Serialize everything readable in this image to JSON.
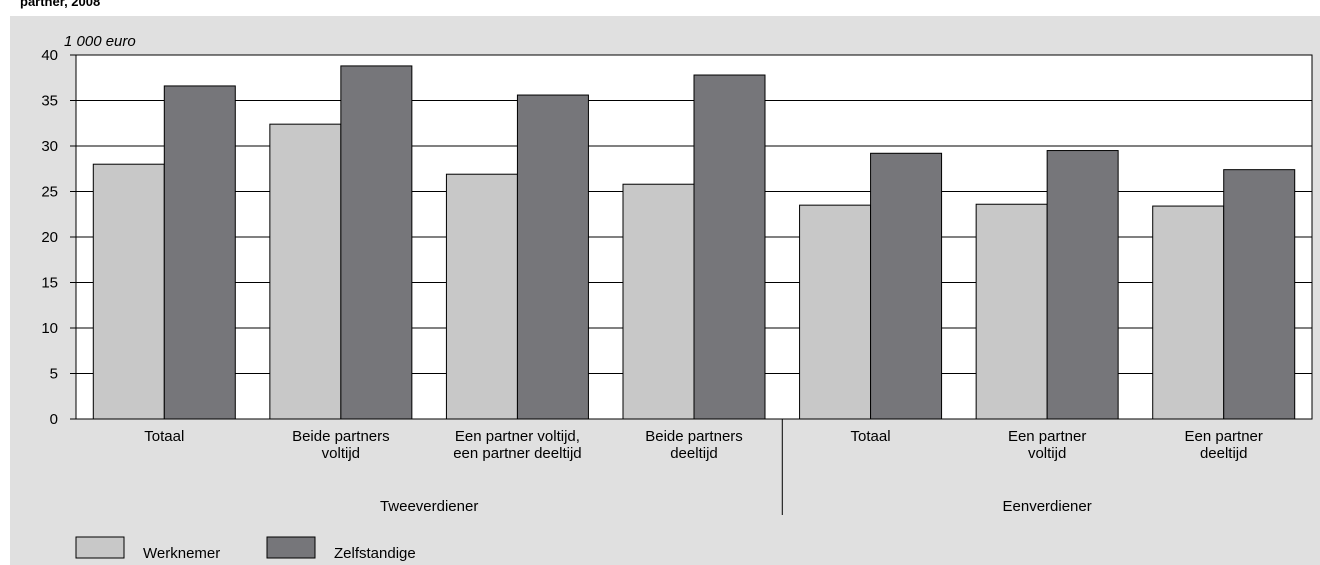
{
  "title_fragment": "partner, 2008",
  "chart_data": {
    "type": "bar",
    "unit_label": "1 000 euro",
    "ylim": [
      0,
      40
    ],
    "yticks": [
      0,
      5,
      10,
      15,
      20,
      25,
      30,
      35,
      40
    ],
    "grid": true,
    "legend_placement": "bottom-left",
    "categories": [
      [
        "Totaal"
      ],
      [
        "Beide partners",
        "voltijd"
      ],
      [
        "Een partner voltijd,",
        "een partner deeltijd"
      ],
      [
        "Beide partners",
        "deeltijd"
      ],
      [
        "Totaal"
      ],
      [
        "Een partner",
        "voltijd"
      ],
      [
        "Een partner",
        "deeltijd"
      ]
    ],
    "groups": [
      {
        "label": "Tweeverdiener",
        "categories": [
          0,
          1,
          2,
          3
        ]
      },
      {
        "label": "Eenverdiener",
        "categories": [
          4,
          5,
          6
        ]
      }
    ],
    "series": [
      {
        "name": "Werknemer",
        "color": "#c8c8c8",
        "values": [
          28.0,
          32.4,
          26.9,
          25.8,
          23.5,
          23.6,
          23.4
        ]
      },
      {
        "name": "Zelfstandige",
        "color": "#76767a",
        "values": [
          36.6,
          38.8,
          35.6,
          37.8,
          29.2,
          29.5,
          27.4
        ]
      }
    ]
  }
}
